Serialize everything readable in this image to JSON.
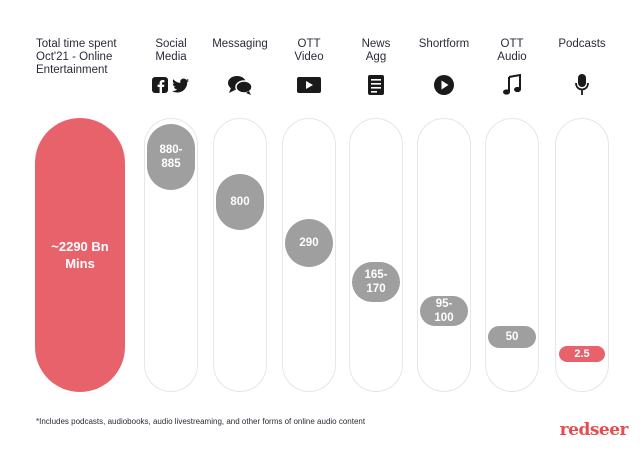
{
  "total": {
    "label": "Total time spent\nOct'21 - Online\nEntertainment",
    "value": "~2290 Bn\nMins",
    "color": "#e8626c"
  },
  "columns": [
    {
      "label": "Social\nMedia",
      "icon": "facebook-twitter-icons",
      "value_label": "880-\n885",
      "value": 882.5
    },
    {
      "label": "Messaging",
      "icon": "chat-bubbles-icon",
      "value_label": "800",
      "value": 800
    },
    {
      "label": "OTT\nVideo",
      "icon": "video-play-icon",
      "value_label": "290",
      "value": 290
    },
    {
      "label": "News\nAgg",
      "icon": "news-document-icon",
      "value_label": "165-\n170",
      "value": 167.5
    },
    {
      "label": "Shortform",
      "icon": "play-circle-icon",
      "value_label": "95-\n100",
      "value": 97.5
    },
    {
      "label": "OTT\nAudio",
      "icon": "music-note-icon",
      "value_label": "50",
      "value": 50
    },
    {
      "label": "Podcasts",
      "icon": "microphone-icon",
      "value_label": "2.5",
      "value": 2.5
    }
  ],
  "colors": {
    "bubble": "#a09f9f",
    "highlight": "#e8626c",
    "track_border": "#e6e6e6",
    "text": "#2b2b3c"
  },
  "footnote": "*Includes podcasts, audiobooks, audio livestreaming, and other forms of online audio content",
  "brand": {
    "text": "redseer",
    "color": "#e84b4f"
  },
  "chart_data": {
    "type": "bar",
    "title": "Total time spent Oct'21 - Online Entertainment",
    "total": "~2290 Bn Mins",
    "categories": [
      "Social Media",
      "Messaging",
      "OTT Video",
      "News Agg",
      "Shortform",
      "OTT Audio",
      "Podcasts"
    ],
    "values": [
      882.5,
      800,
      290,
      167.5,
      97.5,
      50,
      2.5
    ],
    "value_labels": [
      "880-885",
      "800",
      "290",
      "165-170",
      "95-100",
      "50",
      "2.5"
    ],
    "ylim": [
      0,
      2290
    ],
    "grid": false,
    "legend": "none"
  }
}
